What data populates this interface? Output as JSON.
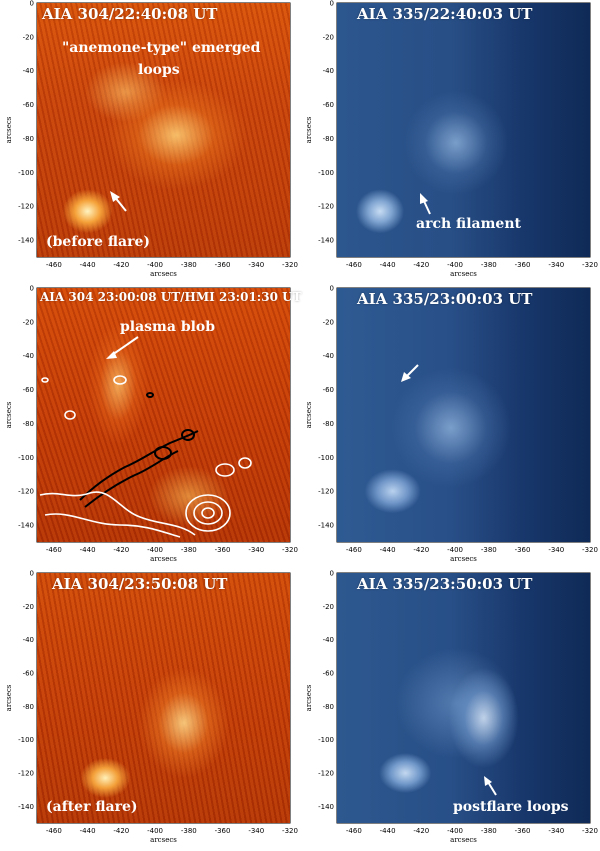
{
  "panels": [
    {
      "title": "AIA 304/22:40:08 UT",
      "annotations": [
        "\"anemone-type\" emerged",
        "loops",
        "(before flare)"
      ],
      "colormap": "red-orange"
    },
    {
      "title": "AIA 335/22:40:03 UT",
      "annotations": [
        "arch filament"
      ],
      "colormap": "blue"
    },
    {
      "title": "AIA 304 23:00:08 UT/HMI 23:01:30 UT",
      "annotations": [
        "plasma blob"
      ],
      "colormap": "red-orange",
      "overlay": "HMI magnetogram contours (white positive, black negative)"
    },
    {
      "title": "AIA 335/23:00:03 UT",
      "annotations": [],
      "colormap": "blue"
    },
    {
      "title": "AIA 304/23:50:08 UT",
      "annotations": [
        "(after flare)"
      ],
      "colormap": "red-orange"
    },
    {
      "title": "AIA 335/23:50:03 UT",
      "annotations": [
        "postflare loops"
      ],
      "colormap": "blue"
    }
  ],
  "axes": {
    "xlabel": "arcsecs",
    "ylabel": "arcsecs",
    "xticks": [
      "-460",
      "-440",
      "-420",
      "-400",
      "-380",
      "-360",
      "-340",
      "-320"
    ],
    "yticks": [
      "0",
      "-20",
      "-40",
      "-60",
      "-80",
      "-100",
      "-120",
      "-140"
    ],
    "xrange": [
      -470,
      -320
    ],
    "yrange": [
      -150,
      0
    ]
  },
  "colors": {
    "aia304_dark": "#8a1a00",
    "aia304_mid": "#d24a06",
    "aia304_bright": "#fff0b0",
    "aia335_dark": "#0e2a55",
    "aia335_mid": "#2f5b96",
    "aia335_bright": "#d0e4f8"
  }
}
